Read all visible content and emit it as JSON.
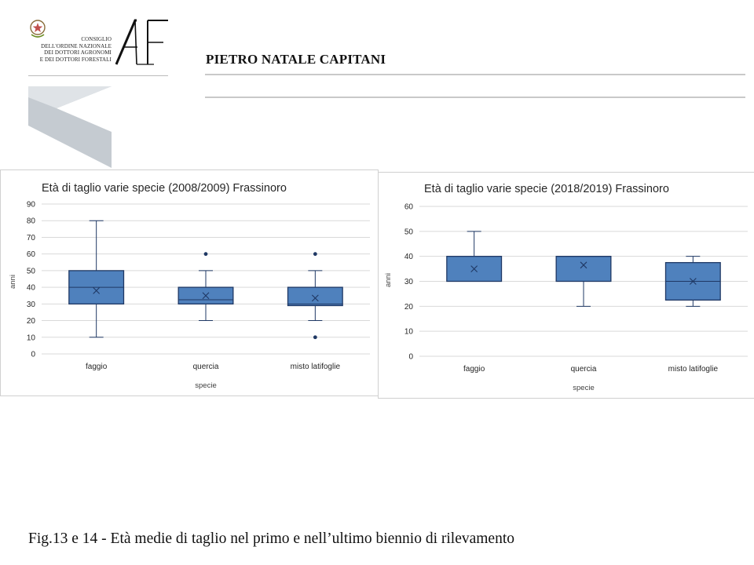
{
  "header": {
    "org_lines": [
      "CONSIGLIO",
      "DELL'ORDINE NAZIONALE",
      "DEI DOTTORI AGRONOMI",
      "E DEI DOTTORI FORESTALI"
    ],
    "logo_mark": "AF",
    "author": "PIETRO NATALE CAPITANI"
  },
  "colors": {
    "box_fill": "#4f81bd",
    "box_stroke": "#1f3864",
    "grid": "#d9d9d9",
    "text": "#262626"
  },
  "chart_data": [
    {
      "type": "boxplot",
      "title": "Età di taglio varie specie (2008/2009) Frassinoro",
      "xlabel": "specie",
      "ylabel": "anni",
      "ylim": [
        0,
        90
      ],
      "yticks": [
        0,
        10,
        20,
        30,
        40,
        50,
        60,
        70,
        80,
        90
      ],
      "grid": true,
      "categories": [
        "faggio",
        "quercia",
        "misto latifoglie"
      ],
      "boxes": [
        {
          "min": 10,
          "q1": 30,
          "median": 40,
          "q3": 50,
          "max": 80,
          "mean": 38,
          "outliers": []
        },
        {
          "min": 20,
          "q1": 30,
          "median": 32.5,
          "q3": 40,
          "max": 50,
          "mean": 35,
          "outliers": [
            60
          ]
        },
        {
          "min": 20,
          "q1": 29,
          "median": 30,
          "q3": 40,
          "max": 50,
          "mean": 33.5,
          "outliers": [
            60,
            10
          ]
        }
      ]
    },
    {
      "type": "boxplot",
      "title": "Età di taglio varie specie (2018/2019) Frassinoro",
      "xlabel": "specie",
      "ylabel": "anni",
      "ylim": [
        0,
        60
      ],
      "yticks": [
        0,
        10,
        20,
        30,
        40,
        50,
        60
      ],
      "grid": true,
      "categories": [
        "faggio",
        "quercia",
        "misto latifoglie"
      ],
      "boxes": [
        {
          "min": 30,
          "q1": 30,
          "median": 30,
          "q3": 40,
          "max": 50,
          "mean": 35,
          "outliers": []
        },
        {
          "min": 20,
          "q1": 30,
          "median": 40,
          "q3": 40,
          "max": 40,
          "mean": 36.5,
          "outliers": []
        },
        {
          "min": 20,
          "q1": 22.5,
          "median": 30,
          "q3": 37.5,
          "max": 40,
          "mean": 30,
          "outliers": []
        }
      ]
    }
  ],
  "caption": "Fig.13 e 14 - Età medie di taglio nel primo e nell’ultimo biennio di rilevamento"
}
